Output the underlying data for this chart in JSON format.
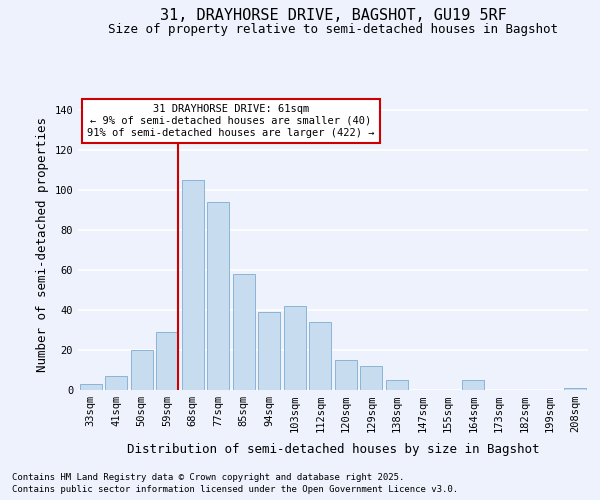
{
  "title1": "31, DRAYHORSE DRIVE, BAGSHOT, GU19 5RF",
  "title2": "Size of property relative to semi-detached houses in Bagshot",
  "xlabel": "Distribution of semi-detached houses by size in Bagshot",
  "ylabel": "Number of semi-detached properties",
  "categories": [
    "33sqm",
    "41sqm",
    "50sqm",
    "59sqm",
    "68sqm",
    "77sqm",
    "85sqm",
    "94sqm",
    "103sqm",
    "112sqm",
    "120sqm",
    "129sqm",
    "138sqm",
    "147sqm",
    "155sqm",
    "164sqm",
    "173sqm",
    "182sqm",
    "199sqm",
    "208sqm"
  ],
  "values": [
    3,
    7,
    20,
    29,
    105,
    94,
    58,
    39,
    42,
    34,
    15,
    12,
    5,
    0,
    0,
    5,
    0,
    0,
    0,
    1
  ],
  "bar_color": "#c8dcf0",
  "bar_edge_color": "#8ab4d8",
  "vline_x_idx": 3,
  "vline_color": "#cc0000",
  "annotation_box_text": "31 DRAYHORSE DRIVE: 61sqm\n← 9% of semi-detached houses are smaller (40)\n91% of semi-detached houses are larger (422) →",
  "ylim": [
    0,
    145
  ],
  "yticks": [
    0,
    20,
    40,
    60,
    80,
    100,
    120,
    140
  ],
  "footer1": "Contains HM Land Registry data © Crown copyright and database right 2025.",
  "footer2": "Contains public sector information licensed under the Open Government Licence v3.0.",
  "bg_color": "#eef2fc",
  "grid_color": "#ffffff",
  "title_fontsize": 11,
  "subtitle_fontsize": 9,
  "axis_label_fontsize": 9,
  "tick_fontsize": 7.5,
  "footer_fontsize": 6.5
}
